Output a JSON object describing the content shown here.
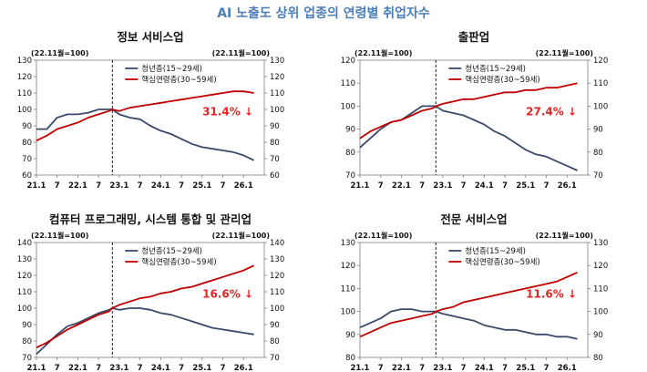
{
  "page_title": "AI 노출도 상위 업종의 연령별 취업자수",
  "legend": [
    "청년층(15~29세)",
    "핵심연령층(30~59세)"
  ],
  "colors": {
    "youth": "#3b4a6b",
    "core": "#c00000",
    "annotation": "#e32626"
  },
  "chart_data": [
    {
      "type": "line",
      "title": "정보 서비스업",
      "unit_label": "(22.11월=100)",
      "x_ticks": [
        "21.1",
        "7",
        "22.1",
        "7",
        "23.1",
        "7",
        "24.1",
        "7",
        "25.1",
        "7",
        "26.1"
      ],
      "reference_line": "22.11",
      "ylim": [
        60,
        130
      ],
      "ystep": 10,
      "annotation": "31.4% ↓",
      "series": [
        {
          "name": "청년층(15~29세)",
          "x": [
            "21.1",
            "21.4",
            "21.7",
            "21.10",
            "22.1",
            "22.4",
            "22.7",
            "22.10",
            "22.11",
            "23.1",
            "23.4",
            "23.7",
            "23.10",
            "24.1",
            "24.4",
            "24.7",
            "24.10",
            "25.1",
            "25.4",
            "25.7",
            "25.10",
            "26.1",
            "26.4"
          ],
          "values": [
            88,
            88,
            95,
            97,
            97,
            98,
            100,
            100,
            100,
            97,
            95,
            94,
            90,
            87,
            85,
            82,
            79,
            77,
            76,
            75,
            74,
            72,
            69
          ]
        },
        {
          "name": "핵심연령층(30~59세)",
          "x": [
            "21.1",
            "21.4",
            "21.7",
            "21.10",
            "22.1",
            "22.4",
            "22.7",
            "22.10",
            "22.11",
            "23.1",
            "23.4",
            "23.7",
            "23.10",
            "24.1",
            "24.4",
            "24.7",
            "24.10",
            "25.1",
            "25.4",
            "25.7",
            "25.10",
            "26.1",
            "26.4"
          ],
          "values": [
            81,
            84,
            88,
            90,
            92,
            95,
            97,
            99,
            100,
            99,
            101,
            102,
            103,
            104,
            105,
            106,
            107,
            108,
            109,
            110,
            111,
            111,
            110
          ]
        }
      ]
    },
    {
      "type": "line",
      "title": "출판업",
      "unit_label": "(22.11월=100)",
      "x_ticks": [
        "21.1",
        "7",
        "22.1",
        "7",
        "23.1",
        "7",
        "24.1",
        "7",
        "25.1",
        "7",
        "26.1"
      ],
      "reference_line": "22.11",
      "ylim": [
        70,
        120
      ],
      "ystep": 10,
      "annotation": "27.4% ↓",
      "series": [
        {
          "name": "청년층(15~29세)",
          "x": [
            "21.1",
            "21.4",
            "21.7",
            "21.10",
            "22.1",
            "22.4",
            "22.7",
            "22.10",
            "22.11",
            "23.1",
            "23.4",
            "23.7",
            "23.10",
            "24.1",
            "24.4",
            "24.7",
            "24.10",
            "25.1",
            "25.4",
            "25.7",
            "25.10",
            "26.1",
            "26.4"
          ],
          "values": [
            82,
            86,
            90,
            93,
            94,
            97,
            100,
            100,
            100,
            98,
            97,
            96,
            94,
            92,
            89,
            87,
            84,
            81,
            79,
            78,
            76,
            74,
            72
          ]
        },
        {
          "name": "핵심연령층(30~59세)",
          "x": [
            "21.1",
            "21.4",
            "21.7",
            "21.10",
            "22.1",
            "22.4",
            "22.7",
            "22.10",
            "22.11",
            "23.1",
            "23.4",
            "23.7",
            "23.10",
            "24.1",
            "24.4",
            "24.7",
            "24.10",
            "25.1",
            "25.4",
            "25.7",
            "25.10",
            "26.1",
            "26.4"
          ],
          "values": [
            86,
            89,
            91,
            93,
            94,
            96,
            98,
            99,
            100,
            101,
            102,
            103,
            103,
            104,
            105,
            106,
            106,
            107,
            107,
            108,
            108,
            109,
            110
          ]
        }
      ]
    },
    {
      "type": "line",
      "title": "컴퓨터 프로그래밍, 시스템 통합 및 관리업",
      "unit_label": "(22.11월=100)",
      "x_ticks": [
        "21.1",
        "7",
        "22.1",
        "7",
        "23.1",
        "7",
        "24.1",
        "7",
        "25.1",
        "7",
        "26.1"
      ],
      "reference_line": "22.11",
      "ylim": [
        70,
        140
      ],
      "ystep": 10,
      "annotation": "16.6% ↓",
      "series": [
        {
          "name": "청년층(15~29세)",
          "x": [
            "21.1",
            "21.4",
            "21.7",
            "21.10",
            "22.1",
            "22.4",
            "22.7",
            "22.10",
            "22.11",
            "23.1",
            "23.4",
            "23.7",
            "23.10",
            "24.1",
            "24.4",
            "24.7",
            "24.10",
            "25.1",
            "25.4",
            "25.7",
            "25.10",
            "26.1",
            "26.4"
          ],
          "values": [
            72,
            78,
            84,
            89,
            91,
            94,
            97,
            99,
            100,
            99,
            100,
            100,
            99,
            97,
            96,
            94,
            92,
            90,
            88,
            87,
            86,
            85,
            84
          ]
        },
        {
          "name": "핵심연령층(30~59세)",
          "x": [
            "21.1",
            "21.4",
            "21.7",
            "21.10",
            "22.1",
            "22.4",
            "22.7",
            "22.10",
            "22.11",
            "23.1",
            "23.4",
            "23.7",
            "23.10",
            "24.1",
            "24.4",
            "24.7",
            "24.10",
            "25.1",
            "25.4",
            "25.7",
            "25.10",
            "26.1",
            "26.4"
          ],
          "values": [
            76,
            79,
            83,
            87,
            90,
            93,
            96,
            98,
            100,
            102,
            104,
            106,
            107,
            109,
            110,
            112,
            113,
            115,
            117,
            119,
            121,
            123,
            126
          ]
        }
      ]
    },
    {
      "type": "line",
      "title": "전문 서비스업",
      "unit_label": "(22.11월=100)",
      "x_ticks": [
        "21.1",
        "7",
        "22.1",
        "7",
        "23.1",
        "7",
        "24.1",
        "7",
        "25.1",
        "7",
        "26.1"
      ],
      "reference_line": "22.11",
      "ylim": [
        80,
        130
      ],
      "ystep": 10,
      "annotation": "11.6% ↓",
      "series": [
        {
          "name": "청년층(15~29세)",
          "x": [
            "21.1",
            "21.4",
            "21.7",
            "21.10",
            "22.1",
            "22.4",
            "22.7",
            "22.10",
            "22.11",
            "23.1",
            "23.4",
            "23.7",
            "23.10",
            "24.1",
            "24.4",
            "24.7",
            "24.10",
            "25.1",
            "25.4",
            "25.7",
            "25.10",
            "26.1",
            "26.4"
          ],
          "values": [
            93,
            95,
            97,
            100,
            101,
            101,
            100,
            100,
            100,
            99,
            98,
            97,
            96,
            94,
            93,
            92,
            92,
            91,
            90,
            90,
            89,
            89,
            88
          ]
        },
        {
          "name": "핵심연령층(30~59세)",
          "x": [
            "21.1",
            "21.4",
            "21.7",
            "21.10",
            "22.1",
            "22.4",
            "22.7",
            "22.10",
            "22.11",
            "23.1",
            "23.4",
            "23.7",
            "23.10",
            "24.1",
            "24.4",
            "24.7",
            "24.10",
            "25.1",
            "25.4",
            "25.7",
            "25.10",
            "26.1",
            "26.4"
          ],
          "values": [
            89,
            91,
            93,
            95,
            96,
            97,
            98,
            99,
            100,
            101,
            102,
            104,
            105,
            106,
            107,
            108,
            109,
            110,
            111,
            112,
            113,
            115,
            117
          ]
        }
      ]
    }
  ]
}
